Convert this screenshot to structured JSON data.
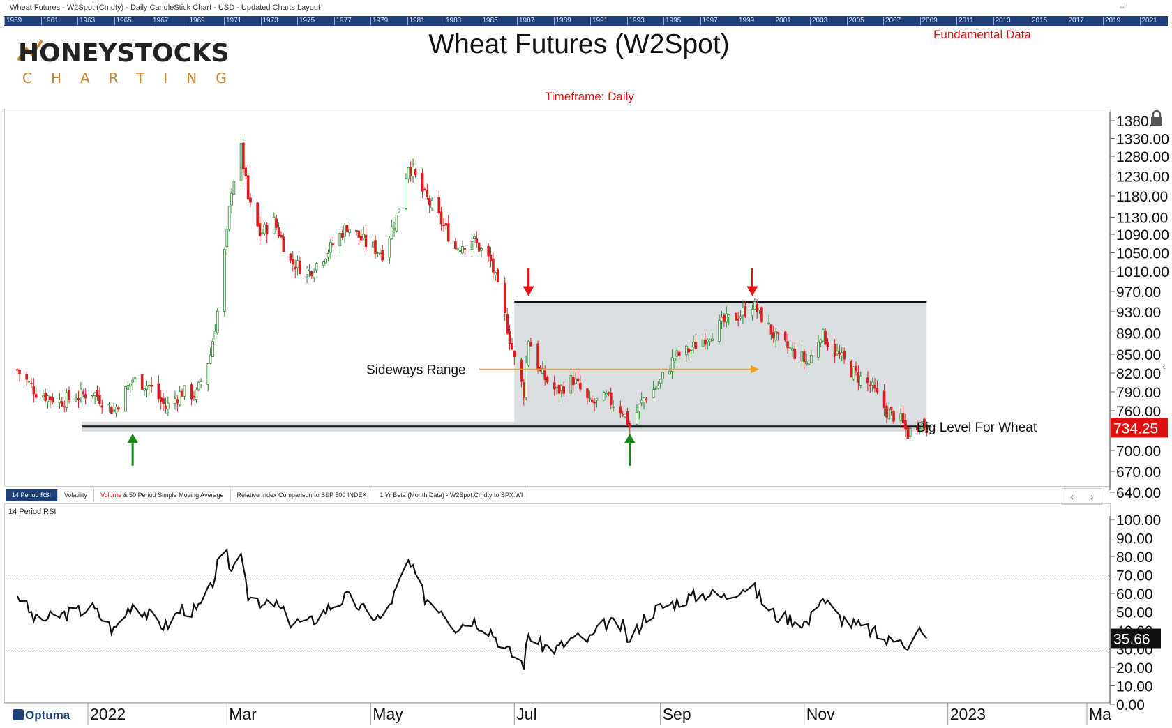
{
  "window": {
    "title": "Wheat Futures - W2Spot (Cmdty) - Daily CandleStick Chart - USD - Updated Charts Layout",
    "pin_icon": "pin-icon"
  },
  "year_strip": [
    "1959",
    "1961",
    "1963",
    "1965",
    "1967",
    "1969",
    "1971",
    "1973",
    "1975",
    "1977",
    "1979",
    "1981",
    "1983",
    "1985",
    "1987",
    "1989",
    "1991",
    "1993",
    "1995",
    "1997",
    "1999",
    "2001",
    "2003",
    "2005",
    "2007",
    "2009",
    "2011",
    "2013",
    "2015",
    "2017",
    "2019",
    "2021"
  ],
  "logo": {
    "line1": "HONEYSTOCKS",
    "line2": "CHARTING"
  },
  "header": {
    "title": "Wheat Futures (W2Spot)",
    "fundamental_link": "Fundamental Data",
    "timeframe": "Timeframe: Daily"
  },
  "colors": {
    "up": "#2a8a2a",
    "down": "#d81e1e",
    "range_fill": "#d6d9dd",
    "accent_orange": "#f0a020",
    "navy": "#1e3f78"
  },
  "chart_data": [
    {
      "type": "candlestick",
      "title": "Wheat Futures (W2Spot)",
      "price_axis": {
        "ticks": [
          640,
          670,
          700,
          760,
          790,
          820,
          850,
          890,
          930,
          970,
          1010,
          1050,
          1090,
          1130,
          1180,
          1230,
          1280,
          1330,
          1380
        ],
        "tick_labels": [
          "640.00",
          "670.00",
          "700.00",
          "760.00",
          "790.00",
          "820.00",
          "850.00",
          "890.00",
          "930.00",
          "970.00",
          "1010.00",
          "1050.00",
          "1090.00",
          "1130.00",
          "1180.00",
          "1230.00",
          "1280.00",
          "1330.00",
          "1380."
        ],
        "last_price": "734.25",
        "last_value": 734.25
      },
      "time_axis": {
        "labels": [
          "2022",
          "Mar",
          "May",
          "Jul",
          "Sep",
          "Nov",
          "2023",
          "Ma"
        ],
        "dates": [
          "2022-01-01",
          "2022-03-01",
          "2022-05-01",
          "2022-07-01",
          "2022-09-01",
          "2022-11-01",
          "2023-01-01",
          "2023-03-01"
        ]
      },
      "price_path": [
        {
          "date": "2021-12-02",
          "close": 825
        },
        {
          "date": "2021-12-10",
          "close": 790
        },
        {
          "date": "2021-12-20",
          "close": 775
        },
        {
          "date": "2022-01-03",
          "close": 790
        },
        {
          "date": "2022-01-12",
          "close": 760
        },
        {
          "date": "2022-01-20",
          "close": 810
        },
        {
          "date": "2022-01-27",
          "close": 800
        },
        {
          "date": "2022-02-03",
          "close": 765
        },
        {
          "date": "2022-02-10",
          "close": 790
        },
        {
          "date": "2022-02-16",
          "close": 785
        },
        {
          "date": "2022-02-22",
          "close": 850
        },
        {
          "date": "2022-02-25",
          "close": 930
        },
        {
          "date": "2022-03-01",
          "close": 1090
        },
        {
          "date": "2022-03-03",
          "close": 1200
        },
        {
          "date": "2022-03-07",
          "close": 1300
        },
        {
          "date": "2022-03-10",
          "close": 1170
        },
        {
          "date": "2022-03-15",
          "close": 1090
        },
        {
          "date": "2022-03-21",
          "close": 1120
        },
        {
          "date": "2022-03-28",
          "close": 1030
        },
        {
          "date": "2022-04-05",
          "close": 1010
        },
        {
          "date": "2022-04-14",
          "close": 1060
        },
        {
          "date": "2022-04-21",
          "close": 1110
        },
        {
          "date": "2022-04-29",
          "close": 1070
        },
        {
          "date": "2022-05-06",
          "close": 1050
        },
        {
          "date": "2022-05-12",
          "close": 1130
        },
        {
          "date": "2022-05-17",
          "close": 1260
        },
        {
          "date": "2022-05-24",
          "close": 1180
        },
        {
          "date": "2022-05-31",
          "close": 1120
        },
        {
          "date": "2022-06-06",
          "close": 1060
        },
        {
          "date": "2022-06-13",
          "close": 1080
        },
        {
          "date": "2022-06-21",
          "close": 1030
        },
        {
          "date": "2022-06-27",
          "close": 920
        },
        {
          "date": "2022-07-01",
          "close": 840
        },
        {
          "date": "2022-07-05",
          "close": 790
        },
        {
          "date": "2022-07-07",
          "close": 880
        },
        {
          "date": "2022-07-12",
          "close": 820
        },
        {
          "date": "2022-07-19",
          "close": 790
        },
        {
          "date": "2022-07-26",
          "close": 810
        },
        {
          "date": "2022-08-02",
          "close": 770
        },
        {
          "date": "2022-08-09",
          "close": 780
        },
        {
          "date": "2022-08-16",
          "close": 760
        },
        {
          "date": "2022-08-19",
          "close": 736
        },
        {
          "date": "2022-08-25",
          "close": 780
        },
        {
          "date": "2022-08-31",
          "close": 800
        },
        {
          "date": "2022-09-07",
          "close": 845
        },
        {
          "date": "2022-09-14",
          "close": 860
        },
        {
          "date": "2022-09-21",
          "close": 885
        },
        {
          "date": "2022-09-28",
          "close": 910
        },
        {
          "date": "2022-10-05",
          "close": 925
        },
        {
          "date": "2022-10-10",
          "close": 945
        },
        {
          "date": "2022-10-14",
          "close": 920
        },
        {
          "date": "2022-10-20",
          "close": 880
        },
        {
          "date": "2022-10-27",
          "close": 855
        },
        {
          "date": "2022-11-03",
          "close": 835
        },
        {
          "date": "2022-11-08",
          "close": 890
        },
        {
          "date": "2022-11-15",
          "close": 850
        },
        {
          "date": "2022-11-22",
          "close": 820
        },
        {
          "date": "2022-11-29",
          "close": 800
        },
        {
          "date": "2022-12-06",
          "close": 760
        },
        {
          "date": "2022-12-12",
          "close": 745
        },
        {
          "date": "2022-12-15",
          "close": 725
        },
        {
          "date": "2022-12-20",
          "close": 745
        },
        {
          "date": "2022-12-23",
          "close": 734.25
        }
      ],
      "annotations": [
        {
          "text": "Sideways Range"
        },
        {
          "text": "Big Level For Wheat"
        }
      ],
      "range_box": {
        "from": "2022-07-01",
        "to": "2022-12-23",
        "low": 736,
        "high": 950
      },
      "support_level": 736,
      "markers": [
        {
          "kind": "down-arrow",
          "date": "2022-07-07"
        },
        {
          "kind": "down-arrow",
          "date": "2022-10-10"
        },
        {
          "kind": "up-arrow",
          "date": "2022-01-20"
        },
        {
          "kind": "up-arrow",
          "date": "2022-08-19"
        }
      ]
    },
    {
      "type": "line",
      "title": "14 Period RSI",
      "ylim": [
        0,
        100
      ],
      "ticks": [
        0,
        10,
        20,
        30,
        40,
        50,
        60,
        70,
        80,
        90,
        100
      ],
      "tick_labels": [
        "0.00",
        "10.00",
        "20.00",
        "30.00",
        "40.00",
        "50.00",
        "60.00",
        "70.00",
        "80.00",
        "90.00",
        "100.00"
      ],
      "reference_lines": [
        70,
        30
      ],
      "last_value": "35.66",
      "series": [
        {
          "values": [
            {
              "date": "2021-12-02",
              "v": 60
            },
            {
              "date": "2021-12-10",
              "v": 45
            },
            {
              "date": "2021-12-20",
              "v": 48
            },
            {
              "date": "2022-01-03",
              "v": 52
            },
            {
              "date": "2022-01-12",
              "v": 40
            },
            {
              "date": "2022-01-20",
              "v": 55
            },
            {
              "date": "2022-01-27",
              "v": 48
            },
            {
              "date": "2022-02-03",
              "v": 42
            },
            {
              "date": "2022-02-10",
              "v": 52
            },
            {
              "date": "2022-02-16",
              "v": 50
            },
            {
              "date": "2022-02-22",
              "v": 62
            },
            {
              "date": "2022-02-25",
              "v": 75
            },
            {
              "date": "2022-03-01",
              "v": 80
            },
            {
              "date": "2022-03-03",
              "v": 72
            },
            {
              "date": "2022-03-07",
              "v": 85
            },
            {
              "date": "2022-03-10",
              "v": 60
            },
            {
              "date": "2022-03-15",
              "v": 52
            },
            {
              "date": "2022-03-21",
              "v": 55
            },
            {
              "date": "2022-03-28",
              "v": 45
            },
            {
              "date": "2022-04-05",
              "v": 44
            },
            {
              "date": "2022-04-14",
              "v": 53
            },
            {
              "date": "2022-04-21",
              "v": 58
            },
            {
              "date": "2022-04-29",
              "v": 50
            },
            {
              "date": "2022-05-06",
              "v": 46
            },
            {
              "date": "2022-05-12",
              "v": 62
            },
            {
              "date": "2022-05-17",
              "v": 77
            },
            {
              "date": "2022-05-24",
              "v": 58
            },
            {
              "date": "2022-05-31",
              "v": 52
            },
            {
              "date": "2022-06-06",
              "v": 42
            },
            {
              "date": "2022-06-13",
              "v": 46
            },
            {
              "date": "2022-06-21",
              "v": 40
            },
            {
              "date": "2022-06-27",
              "v": 30
            },
            {
              "date": "2022-07-01",
              "v": 26
            },
            {
              "date": "2022-07-05",
              "v": 22
            },
            {
              "date": "2022-07-07",
              "v": 38
            },
            {
              "date": "2022-07-12",
              "v": 32
            },
            {
              "date": "2022-07-19",
              "v": 30
            },
            {
              "date": "2022-07-26",
              "v": 36
            },
            {
              "date": "2022-08-02",
              "v": 35
            },
            {
              "date": "2022-08-09",
              "v": 44
            },
            {
              "date": "2022-08-16",
              "v": 42
            },
            {
              "date": "2022-08-19",
              "v": 33
            },
            {
              "date": "2022-08-25",
              "v": 47
            },
            {
              "date": "2022-08-31",
              "v": 52
            },
            {
              "date": "2022-09-07",
              "v": 55
            },
            {
              "date": "2022-09-14",
              "v": 58
            },
            {
              "date": "2022-09-21",
              "v": 60
            },
            {
              "date": "2022-09-28",
              "v": 58
            },
            {
              "date": "2022-10-05",
              "v": 63
            },
            {
              "date": "2022-10-10",
              "v": 64
            },
            {
              "date": "2022-10-14",
              "v": 56
            },
            {
              "date": "2022-10-20",
              "v": 48
            },
            {
              "date": "2022-10-27",
              "v": 46
            },
            {
              "date": "2022-11-03",
              "v": 44
            },
            {
              "date": "2022-11-08",
              "v": 59
            },
            {
              "date": "2022-11-15",
              "v": 48
            },
            {
              "date": "2022-11-22",
              "v": 43
            },
            {
              "date": "2022-11-29",
              "v": 40
            },
            {
              "date": "2022-12-06",
              "v": 34
            },
            {
              "date": "2022-12-12",
              "v": 38
            },
            {
              "date": "2022-12-15",
              "v": 29
            },
            {
              "date": "2022-12-20",
              "v": 40
            },
            {
              "date": "2022-12-23",
              "v": 35.66
            }
          ]
        }
      ]
    }
  ],
  "tabs": [
    {
      "label": "14 Period RSI",
      "active": true
    },
    {
      "label": "Volatility",
      "active": false
    },
    {
      "label_red": "Volume",
      "label": " & 50 Period Simple Moving Average",
      "active": false
    },
    {
      "label": "Relative Index Comparison to S&P 500 INDEX",
      "active": false
    },
    {
      "label": "1 Yr Beta (Month Data) - W2Spot:Cmdty to SPX:WI",
      "active": false
    }
  ],
  "rsi_panel_label": "14 Period RSI",
  "footer": {
    "brand": "Optuma"
  }
}
